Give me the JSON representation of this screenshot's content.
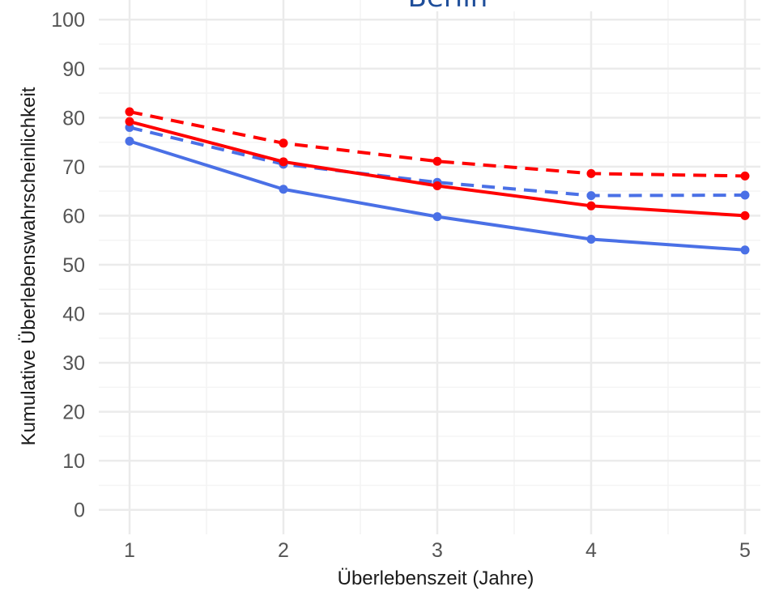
{
  "chart_data": {
    "type": "line",
    "title": "Berlin",
    "xlabel": "Überlebenszeit (Jahre)",
    "ylabel": "Kumulative Überlebenswahrscheinlichkeit",
    "x": [
      1,
      2,
      3,
      4,
      5
    ],
    "x_ticks": [
      "1",
      "2",
      "3",
      "4",
      "5"
    ],
    "y_ticks": [
      "0",
      "10",
      "20",
      "30",
      "40",
      "50",
      "60",
      "70",
      "80",
      "90",
      "100"
    ],
    "xlim": [
      0.8,
      5.1
    ],
    "ylim": [
      -5,
      104
    ],
    "grid": true,
    "legend": "none",
    "series": [
      {
        "color": "#ff0000",
        "dash": "dashed",
        "values": [
          81.2,
          74.8,
          71.1,
          68.6,
          68.1
        ]
      },
      {
        "color": "#4a70e6",
        "dash": "dashed",
        "values": [
          78.0,
          70.5,
          66.8,
          64.1,
          64.2
        ]
      },
      {
        "color": "#ff0000",
        "dash": "solid",
        "values": [
          79.2,
          71.0,
          66.1,
          62.0,
          60.0
        ]
      },
      {
        "color": "#4a70e6",
        "dash": "solid",
        "values": [
          75.2,
          65.4,
          59.8,
          55.2,
          53.0
        ]
      }
    ]
  },
  "colors": {
    "title": "#1f4e9a",
    "grid_major": "#ebebeb",
    "grid_minor": "#f4f4f4",
    "tick_text": "#555555",
    "axis_text": "#1a1a1a"
  }
}
